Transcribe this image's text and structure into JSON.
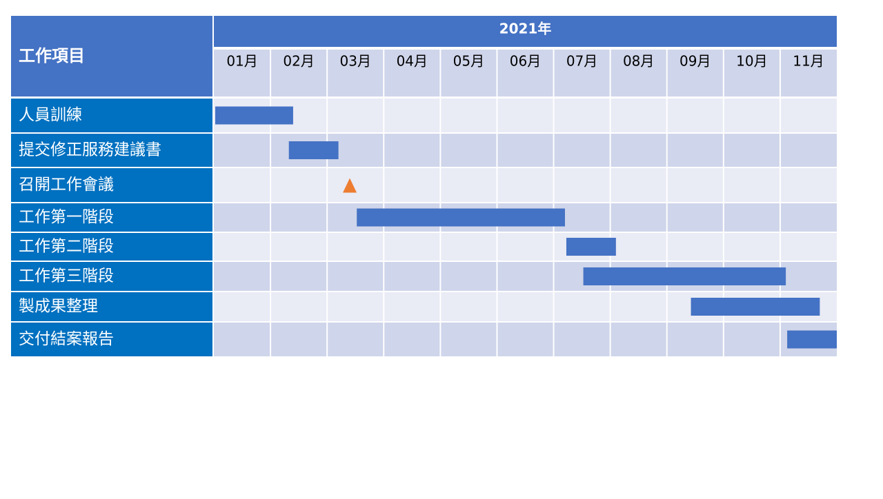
{
  "chart_data": {
    "type": "gantt",
    "row_header": "工作項目",
    "title": "2021年",
    "categories": [
      "01月",
      "02月",
      "03月",
      "04月",
      "05月",
      "06月",
      "07月",
      "08月",
      "09月",
      "10月",
      "11月"
    ],
    "xlim": [
      0,
      11
    ],
    "bar_color": "#4472c4",
    "milestone_color": "#ed7d31",
    "tasks": [
      {
        "name": "人員訓練",
        "start": 0,
        "end": 1.4
      },
      {
        "name": "提交修正服務建議書",
        "start": 1.3,
        "end": 2.2
      },
      {
        "name": "召開工作會議",
        "milestone": 2.4
      },
      {
        "name": "工作第一階段",
        "start": 2.5,
        "end": 6.2
      },
      {
        "name": "工作第二階段",
        "start": 6.2,
        "end": 7.1
      },
      {
        "name": "工作第三階段",
        "start": 6.5,
        "end": 10.1
      },
      {
        "name": "製成果整理",
        "start": 8.4,
        "end": 10.7
      },
      {
        "name": "交付結案報告",
        "start": 10.1,
        "end": 11.0
      }
    ]
  }
}
